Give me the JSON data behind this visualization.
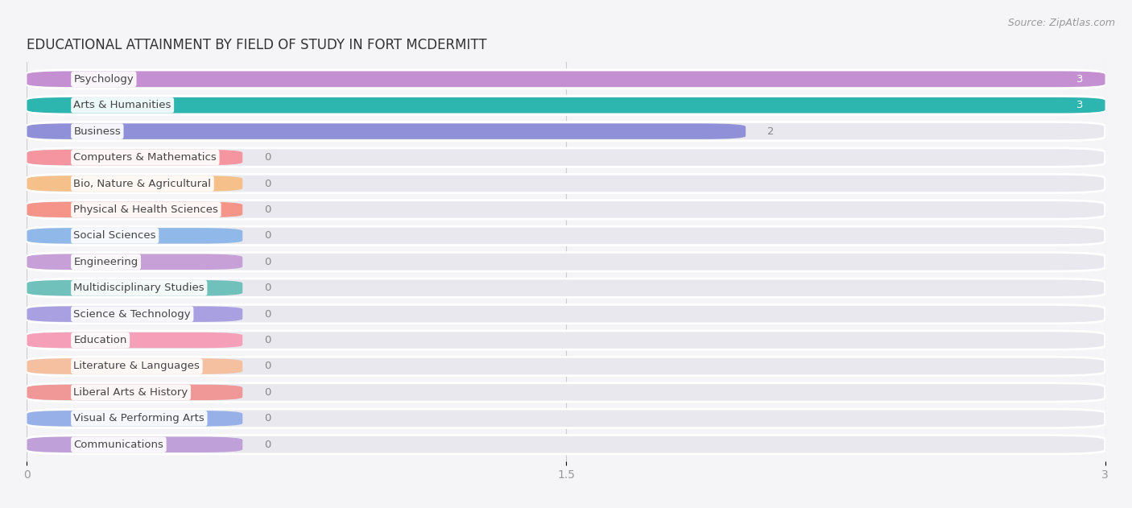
{
  "title": "EDUCATIONAL ATTAINMENT BY FIELD OF STUDY IN FORT MCDERMITT",
  "source": "Source: ZipAtlas.com",
  "categories": [
    "Psychology",
    "Arts & Humanities",
    "Business",
    "Computers & Mathematics",
    "Bio, Nature & Agricultural",
    "Physical & Health Sciences",
    "Social Sciences",
    "Engineering",
    "Multidisciplinary Studies",
    "Science & Technology",
    "Education",
    "Literature & Languages",
    "Liberal Arts & History",
    "Visual & Performing Arts",
    "Communications"
  ],
  "values": [
    3,
    3,
    2,
    0,
    0,
    0,
    0,
    0,
    0,
    0,
    0,
    0,
    0,
    0,
    0
  ],
  "bar_colors": [
    "#c490d1",
    "#2db5b0",
    "#9090d8",
    "#f595a0",
    "#f5c08a",
    "#f5958a",
    "#90b8e8",
    "#c8a0d8",
    "#70c0bc",
    "#a8a0e0",
    "#f5a0b8",
    "#f5c0a0",
    "#f09898",
    "#98b0e8",
    "#c0a0d8"
  ],
  "xlim": [
    0,
    3
  ],
  "xticks": [
    0,
    1.5,
    3
  ],
  "xtick_labels": [
    "0",
    "1.5",
    "3"
  ],
  "background_color": "#f5f5f8",
  "bar_bg_color": "#e8e8ee",
  "bar_bg_outline": "#ffffff",
  "title_fontsize": 12,
  "source_fontsize": 9,
  "label_fontsize": 9.5,
  "value_fontsize": 9.5
}
